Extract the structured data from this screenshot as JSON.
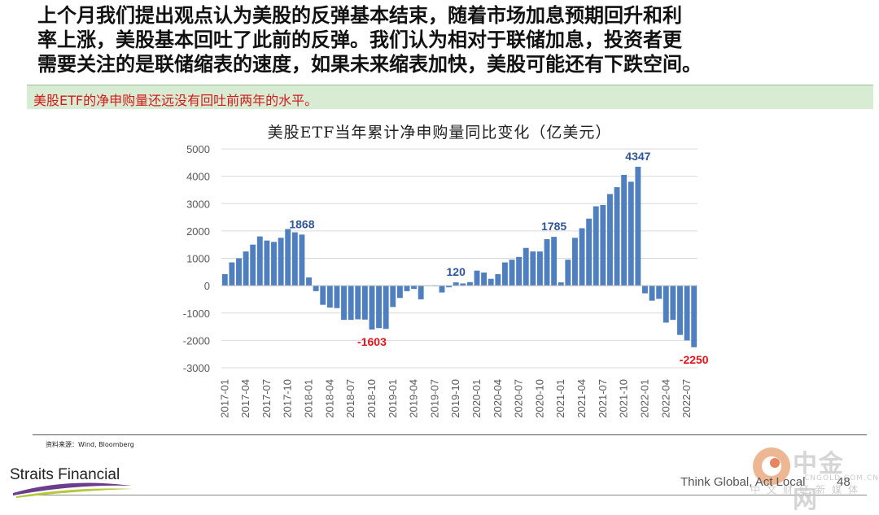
{
  "intro": {
    "line1": "上个月我们提出观点认为美股的反弹基本结束，随着市场加息预期回升和利",
    "line2": "率上涨，美股基本回吐了此前的反弹。我们认为相对于联储加息，投资者更",
    "line3": "需要关注的是联储缩表的速度，如果未来缩表加快，美股可能还有下跌空间。"
  },
  "banner": {
    "text": "美股ETF的净申购量还远没有回吐前两年的水平。"
  },
  "source": "资料来源：Wind, Bloomberg",
  "footer": {
    "company": "Straits Financial",
    "slogan": "Think Global, Act Local",
    "page": "48"
  },
  "watermark": {
    "name": "中金网",
    "url": "CNGOLD.COM.CN",
    "sub": "中文财经新媒体"
  },
  "colors": {
    "bar": "#4f7fbf",
    "label_pos": "#2e5597",
    "label_neg": "#e0141b",
    "banner_bg": "#d8ecd4"
  },
  "chart_data": {
    "type": "bar",
    "title": "美股ETF当年累计净申购量同比变化（亿美元）",
    "ylim": [
      -3000,
      5000
    ],
    "yticks": [
      5000,
      4000,
      3000,
      2000,
      1000,
      0,
      -1000,
      -2000,
      -3000
    ],
    "grid": true,
    "x_tick_labels": [
      "2017-01",
      "2017-04",
      "2017-07",
      "2017-10",
      "2018-01",
      "2018-04",
      "2018-07",
      "2018-10",
      "2019-01",
      "2019-04",
      "2019-07",
      "2019-10",
      "2020-01",
      "2020-04",
      "2020-07",
      "2020-10",
      "2021-01",
      "2021-04",
      "2021-07",
      "2021-10",
      "2022-01",
      "2022-04",
      "2022-07"
    ],
    "categories": [
      "2017-01",
      "2017-02",
      "2017-03",
      "2017-04",
      "2017-05",
      "2017-06",
      "2017-07",
      "2017-08",
      "2017-09",
      "2017-10",
      "2017-11",
      "2017-12",
      "2018-01",
      "2018-02",
      "2018-03",
      "2018-04",
      "2018-05",
      "2018-06",
      "2018-07",
      "2018-08",
      "2018-09",
      "2018-10",
      "2018-11",
      "2018-12",
      "2019-01",
      "2019-02",
      "2019-03",
      "2019-04",
      "2019-05",
      "2019-06",
      "2019-07",
      "2019-08",
      "2019-09",
      "2019-10",
      "2019-11",
      "2019-12",
      "2020-01",
      "2020-02",
      "2020-03",
      "2020-04",
      "2020-05",
      "2020-06",
      "2020-07",
      "2020-08",
      "2020-09",
      "2020-10",
      "2020-11",
      "2020-12",
      "2021-01",
      "2021-02",
      "2021-03",
      "2021-04",
      "2021-05",
      "2021-06",
      "2021-07",
      "2021-08",
      "2021-09",
      "2021-10",
      "2021-11",
      "2021-12",
      "2022-01",
      "2022-02",
      "2022-03",
      "2022-04",
      "2022-05",
      "2022-06",
      "2022-07",
      "2022-08"
    ],
    "values": [
      420,
      850,
      1000,
      1250,
      1500,
      1800,
      1650,
      1600,
      1750,
      2070,
      1950,
      1868,
      300,
      -200,
      -700,
      -800,
      -820,
      -1250,
      -1250,
      -1230,
      -1240,
      -1603,
      -1550,
      -1580,
      -780,
      -450,
      -200,
      -120,
      -500,
      -10,
      -20,
      -250,
      -60,
      120,
      80,
      130,
      550,
      480,
      250,
      420,
      850,
      950,
      1050,
      1380,
      1250,
      1250,
      1700,
      1785,
      120,
      950,
      1750,
      2100,
      2450,
      2900,
      2950,
      3350,
      3600,
      4050,
      3800,
      4347,
      -280,
      -550,
      -480,
      -1350,
      -1250,
      -1800,
      -2000,
      -2250
    ],
    "data_labels": [
      {
        "category": "2017-12",
        "value": 1868,
        "text": "1868"
      },
      {
        "category": "2018-10",
        "value": -1603,
        "text": "-1603"
      },
      {
        "category": "2019-10",
        "value": 120,
        "text": "120"
      },
      {
        "category": "2020-12",
        "value": 1785,
        "text": "1785"
      },
      {
        "category": "2021-12",
        "value": 4347,
        "text": "4347"
      },
      {
        "category": "2022-08",
        "value": -2250,
        "text": "-2250"
      }
    ]
  }
}
